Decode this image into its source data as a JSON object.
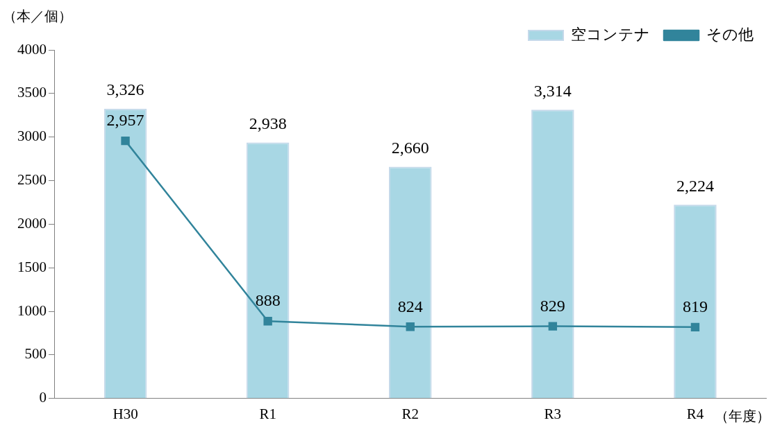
{
  "chart_data": {
    "type": "bar",
    "ylabel": "（本／個）",
    "xlabel": "（年度）",
    "categories": [
      "H30",
      "R1",
      "R2",
      "R3",
      "R4"
    ],
    "series": [
      {
        "name": "空コンテナ",
        "color": "#a8d7e4",
        "values": [
          3326,
          2938,
          2660,
          3314,
          2224
        ],
        "value_labels": [
          "3,326",
          "2,938",
          "2,660",
          "3,314",
          "2,224"
        ]
      },
      {
        "name": "その他",
        "type": "line",
        "color": "#31849b",
        "values": [
          2957,
          888,
          824,
          829,
          819
        ],
        "value_labels": [
          "2,957",
          "888",
          "824",
          "829",
          "819"
        ]
      }
    ],
    "ylim": [
      0,
      4000
    ],
    "yticks": [
      0,
      500,
      1000,
      1500,
      2000,
      2500,
      3000,
      3500,
      4000
    ],
    "grid": false,
    "legend": "top right",
    "marker": "square",
    "line_style": "solid"
  }
}
